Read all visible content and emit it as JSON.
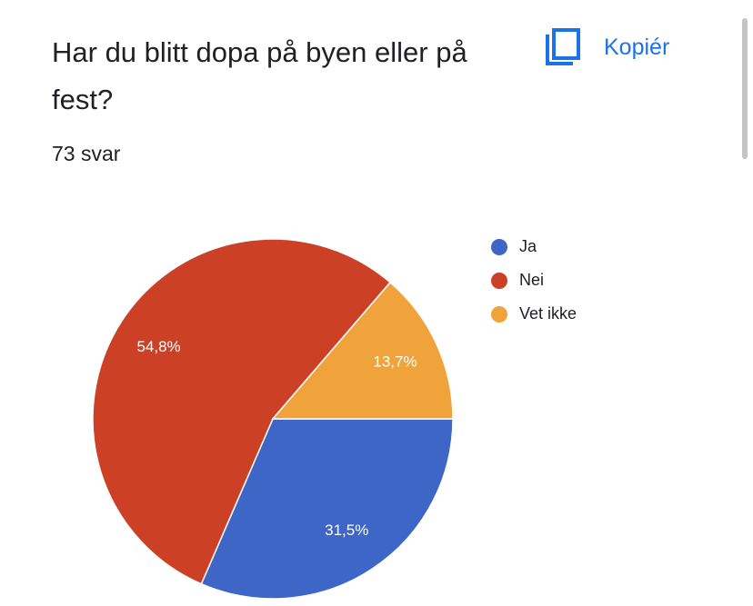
{
  "copy_button_label": "Kopiér",
  "chart_data": {
    "type": "pie",
    "title": "Har du blitt dopa på byen eller på fest?",
    "subtitle": "73 svar",
    "categories": [
      "Ja",
      "Nei",
      "Vet ikke"
    ],
    "values": [
      31.5,
      54.8,
      13.7
    ],
    "value_labels": [
      "31,5%",
      "54,8%",
      "13,7%"
    ],
    "colors": [
      "#3e66c6",
      "#cc4125",
      "#f0a33a"
    ]
  }
}
